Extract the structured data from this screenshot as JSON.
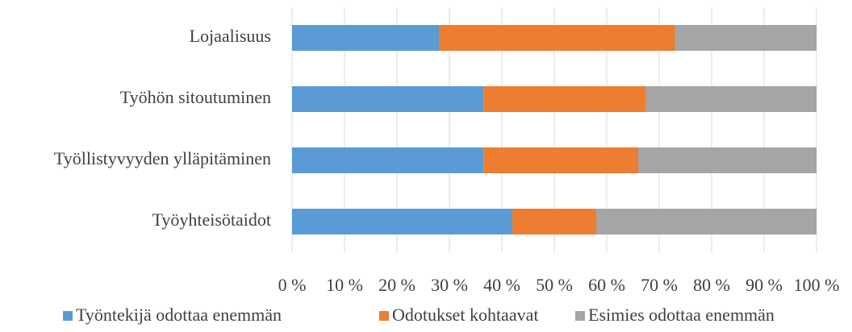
{
  "chart_data": {
    "type": "stacked_barh",
    "categories": [
      "Lojaalisuus",
      "Työhön sitoutuminen",
      "Työllistyvyyden ylläpitäminen",
      "Työyhteisötaidot"
    ],
    "series": [
      {
        "name": "Työntekijä odottaa enemmän",
        "color": "#5b9bd5",
        "values": [
          28,
          36.5,
          36.5,
          42
        ]
      },
      {
        "name": "Odotukset kohtaavat",
        "color": "#ed7d31",
        "values": [
          45,
          31,
          29.5,
          16
        ]
      },
      {
        "name": "Esimies odottaa enemmän",
        "color": "#a5a5a5",
        "values": [
          27,
          32.5,
          34,
          42
        ]
      }
    ],
    "xlim": [
      0,
      100
    ],
    "xticks": [
      {
        "value": 0,
        "label": "0 %"
      },
      {
        "value": 10,
        "label": "10 %"
      },
      {
        "value": 20,
        "label": "20 %"
      },
      {
        "value": 30,
        "label": "30 %"
      },
      {
        "value": 40,
        "label": "40 %"
      },
      {
        "value": 50,
        "label": "50 %"
      },
      {
        "value": 60,
        "label": "60 %"
      },
      {
        "value": 70,
        "label": "70 %"
      },
      {
        "value": 80,
        "label": "80 %"
      },
      {
        "value": 90,
        "label": "90 %"
      },
      {
        "value": 100,
        "label": "100 %"
      }
    ],
    "grid": true,
    "legend": "bottom"
  }
}
